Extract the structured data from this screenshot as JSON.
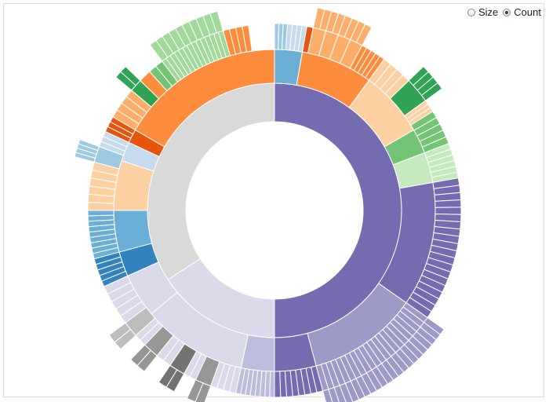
{
  "controls": {
    "size_label": "Size",
    "count_label": "Count",
    "selected": "count"
  },
  "chart_data": {
    "type": "sunburst",
    "title": "",
    "value_mode": "count",
    "center_gap": true,
    "start_angle_deg": 0,
    "levels": [
      {
        "name": "level-1",
        "arcs": [
          {
            "start": 0,
            "end": 180,
            "color": "#756bb1"
          },
          {
            "start": 180,
            "end": 237,
            "color": "#dadaeb"
          },
          {
            "start": 237,
            "end": 360,
            "color": "#d9d9d9"
          }
        ]
      },
      {
        "name": "level-2",
        "arcs": [
          {
            "start": 0,
            "end": 10,
            "color": "#6baed6"
          },
          {
            "start": 10,
            "end": 36,
            "color": "#fd8d3c"
          },
          {
            "start": 36,
            "end": 60,
            "color": "#fdd0a2"
          },
          {
            "start": 60,
            "end": 69,
            "color": "#74c476"
          },
          {
            "start": 69,
            "end": 80,
            "color": "#c7e9c0"
          },
          {
            "start": 80,
            "end": 125,
            "color": "#756bb1"
          },
          {
            "start": 125,
            "end": 165,
            "color": "#9e9ac8"
          },
          {
            "start": 165,
            "end": 180,
            "color": "#756bb1"
          },
          {
            "start": 180,
            "end": 192,
            "color": "#bcbddc"
          },
          {
            "start": 192,
            "end": 230,
            "color": "#dadaeb"
          },
          {
            "start": 230,
            "end": 246,
            "color": "#dadaeb"
          },
          {
            "start": 246,
            "end": 255,
            "color": "#3182bd"
          },
          {
            "start": 255,
            "end": 270,
            "color": "#6baed6"
          },
          {
            "start": 270,
            "end": 288,
            "color": "#fdd0a2"
          },
          {
            "start": 288,
            "end": 295,
            "color": "#c6dbef"
          },
          {
            "start": 295,
            "end": 300,
            "color": "#e6550d"
          },
          {
            "start": 300,
            "end": 360,
            "color": "#fd8d3c"
          }
        ]
      },
      {
        "name": "level-3",
        "arcs": [
          {
            "start": 0,
            "end": 4,
            "color": "#9ecae1",
            "subdivisions": 3
          },
          {
            "start": 4,
            "end": 10,
            "color": "#c6dbef",
            "subdivisions": 4
          },
          {
            "start": 10,
            "end": 12,
            "color": "#e6550d",
            "subdivisions": 1
          },
          {
            "start": 12,
            "end": 28,
            "color": "#fdae6b",
            "subdivisions": 4
          },
          {
            "start": 28,
            "end": 36,
            "color": "#fd8d3c",
            "subdivisions": 5
          },
          {
            "start": 36,
            "end": 46,
            "color": "#fdd0a2",
            "subdivisions": 4
          },
          {
            "start": 46,
            "end": 54,
            "color": "#31a354",
            "subdivisions": 1
          },
          {
            "start": 54,
            "end": 58,
            "color": "#fdd0a2",
            "subdivisions": 3
          },
          {
            "start": 58,
            "end": 69,
            "color": "#74c476",
            "subdivisions": 5
          },
          {
            "start": 69,
            "end": 80,
            "color": "#c7e9c0",
            "subdivisions": 6
          },
          {
            "start": 80,
            "end": 125,
            "color": "#756bb1",
            "subdivisions": 20
          },
          {
            "start": 125,
            "end": 165,
            "color": "#9e9ac8",
            "subdivisions": 22
          },
          {
            "start": 165,
            "end": 180,
            "color": "#756bb1",
            "subdivisions": 8
          },
          {
            "start": 180,
            "end": 192,
            "color": "#bcbddc",
            "subdivisions": 8
          },
          {
            "start": 192,
            "end": 200,
            "color": "#dadaeb",
            "subdivisions": 4
          },
          {
            "start": 200,
            "end": 205,
            "color": "#969696",
            "subdivisions": 1
          },
          {
            "start": 205,
            "end": 209,
            "color": "#dadaeb",
            "subdivisions": 2
          },
          {
            "start": 209,
            "end": 214,
            "color": "#737373",
            "subdivisions": 1
          },
          {
            "start": 214,
            "end": 219,
            "color": "#dadaeb",
            "subdivisions": 2
          },
          {
            "start": 219,
            "end": 224,
            "color": "#969696",
            "subdivisions": 1
          },
          {
            "start": 224,
            "end": 228,
            "color": "#dadaeb",
            "subdivisions": 2
          },
          {
            "start": 228,
            "end": 233,
            "color": "#bdbdbd",
            "subdivisions": 1
          },
          {
            "start": 233,
            "end": 246,
            "color": "#dadaeb",
            "subdivisions": 5
          },
          {
            "start": 246,
            "end": 255,
            "color": "#3182bd",
            "subdivisions": 5
          },
          {
            "start": 255,
            "end": 270,
            "color": "#6baed6",
            "subdivisions": 9
          },
          {
            "start": 270,
            "end": 285,
            "color": "#fdd0a2",
            "subdivisions": 6
          },
          {
            "start": 285,
            "end": 290,
            "color": "#9ecae1",
            "subdivisions": 1
          },
          {
            "start": 290,
            "end": 295,
            "color": "#c6dbef",
            "subdivisions": 3
          },
          {
            "start": 295,
            "end": 300,
            "color": "#e6550d",
            "subdivisions": 3
          },
          {
            "start": 300,
            "end": 310,
            "color": "#fdae6b",
            "subdivisions": 4
          },
          {
            "start": 310,
            "end": 314,
            "color": "#31a354",
            "subdivisions": 1
          },
          {
            "start": 314,
            "end": 318,
            "color": "#fd8d3c",
            "subdivisions": 1
          },
          {
            "start": 318,
            "end": 323,
            "color": "#74c476",
            "subdivisions": 2
          },
          {
            "start": 323,
            "end": 344,
            "color": "#a1d99b",
            "subdivisions": 14
          },
          {
            "start": 344,
            "end": 352,
            "color": "#fd8d3c",
            "subdivisions": 4
          },
          {
            "start": 352,
            "end": 360,
            "color": "#ffffff",
            "subdivisions": 1
          }
        ]
      },
      {
        "name": "level-4",
        "arcs": [
          {
            "start": 12,
            "end": 28,
            "color": "#fdae6b",
            "subdivisions": 8
          },
          {
            "start": 46,
            "end": 54,
            "color": "#31a354",
            "subdivisions": 4
          },
          {
            "start": 125,
            "end": 165,
            "color": "#9e9ac8",
            "subdivisions": 22
          },
          {
            "start": 200,
            "end": 205,
            "color": "#969696",
            "subdivisions": 2
          },
          {
            "start": 209,
            "end": 214,
            "color": "#737373",
            "subdivisions": 2
          },
          {
            "start": 219,
            "end": 224,
            "color": "#969696",
            "subdivisions": 2
          },
          {
            "start": 228,
            "end": 233,
            "color": "#bdbdbd",
            "subdivisions": 2
          },
          {
            "start": 285,
            "end": 290,
            "color": "#9ecae1",
            "subdivisions": 4
          },
          {
            "start": 310,
            "end": 314,
            "color": "#31a354",
            "subdivisions": 2
          },
          {
            "start": 323,
            "end": 344,
            "color": "#a1d99b",
            "subdivisions": 10
          }
        ]
      }
    ]
  }
}
